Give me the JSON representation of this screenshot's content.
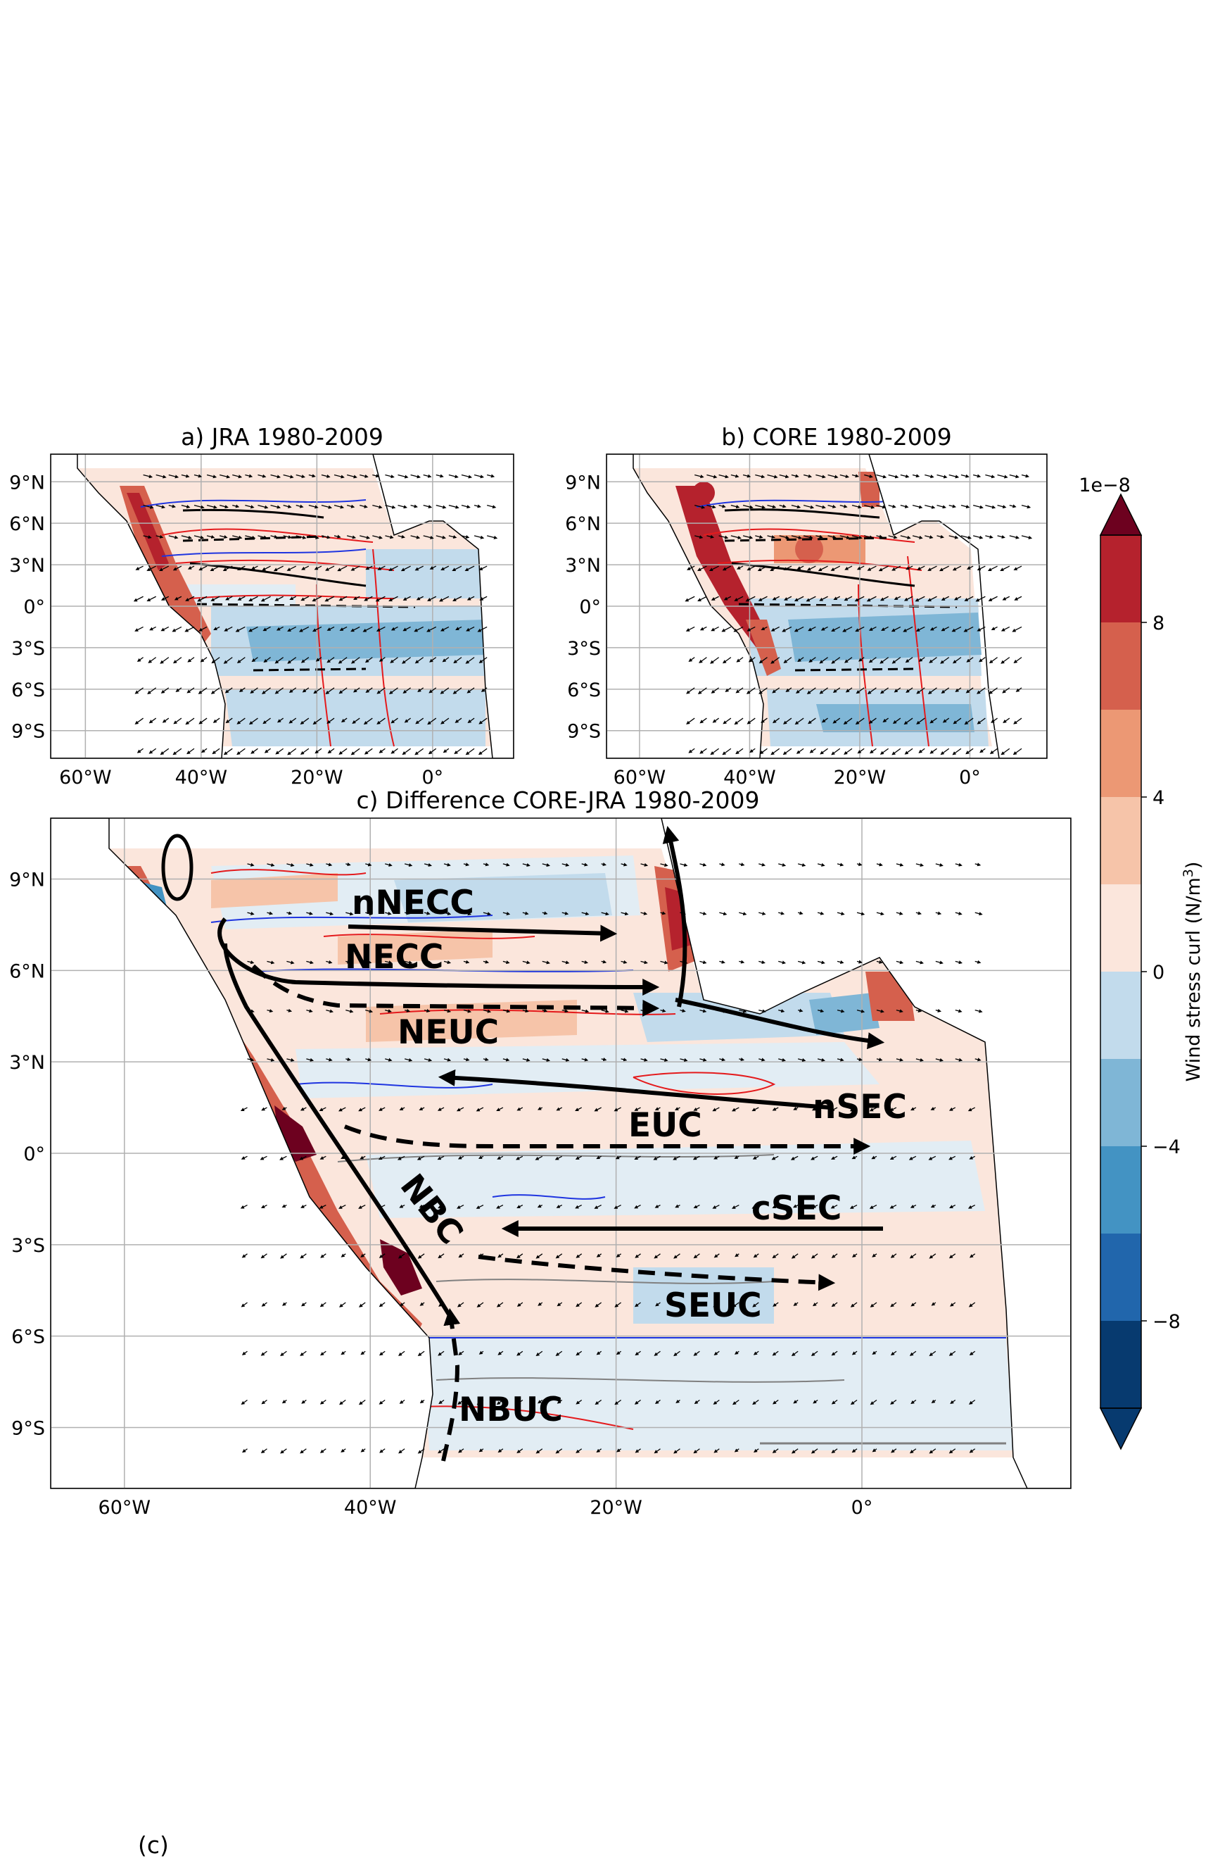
{
  "figure_caption": "(c)",
  "colors": {
    "positive_ramp": [
      "#fbe6dc",
      "#f6c4a9",
      "#ec9874",
      "#d5604d",
      "#b5222d",
      "#6d011f"
    ],
    "negative_ramp": [
      "#e2edf4",
      "#c2dbec",
      "#7fb6d6",
      "#4393c3",
      "#2166ac",
      "#073a6f"
    ],
    "red_contour": "#e41a1c",
    "blue_contour": "#1f35e0",
    "gray_contour": "#808080",
    "current_arrows": "#000000"
  },
  "chart_data": [
    {
      "type": "heatmap",
      "panel": "a",
      "title": "a) JRA 1980-2009",
      "x_ticks": [
        "60°W",
        "40°W",
        "20°W",
        "0°"
      ],
      "y_ticks": [
        "9°N",
        "6°N",
        "3°N",
        "0°",
        "3°S",
        "6°S",
        "9°S"
      ],
      "xlim": [
        -66,
        14
      ],
      "ylim": [
        -11,
        11
      ],
      "grid": true
    },
    {
      "type": "heatmap",
      "panel": "b",
      "title": "b) CORE 1980-2009",
      "x_ticks": [
        "60°W",
        "40°W",
        "20°W",
        "0°"
      ],
      "y_ticks": [
        "9°N",
        "6°N",
        "3°N",
        "0°",
        "3°S",
        "6°S",
        "9°S"
      ],
      "xlim": [
        -66,
        14
      ],
      "ylim": [
        -11,
        11
      ],
      "grid": true
    },
    {
      "type": "heatmap",
      "panel": "c",
      "title": "c) Difference CORE-JRA 1980-2009",
      "x_ticks": [
        "60°W",
        "40°W",
        "20°W",
        "0°"
      ],
      "y_ticks": [
        "9°N",
        "6°N",
        "3°N",
        "0°",
        "3°S",
        "6°S",
        "9°S"
      ],
      "xlim": [
        -66,
        17
      ],
      "ylim": [
        -11,
        11
      ],
      "grid": true,
      "current_labels": [
        "nNECC",
        "NECC",
        "NEUC",
        "nSEC",
        "EUC",
        "cSEC",
        "NBC",
        "SEUC",
        "NBUC"
      ]
    }
  ],
  "colorbar": {
    "label": "Wind stress curl (N/m³)",
    "label_text": "Wind stress curl (N/m",
    "label_sup": "3",
    "label_close": ")",
    "scale_text": "1e−8",
    "tick_labels": [
      "8",
      "4",
      "0",
      "−4",
      "−8"
    ],
    "range": [
      -10,
      10
    ],
    "levels": [
      -10,
      -8,
      -6,
      -4,
      -2,
      0,
      2,
      4,
      6,
      8,
      10
    ],
    "extend": "both"
  }
}
